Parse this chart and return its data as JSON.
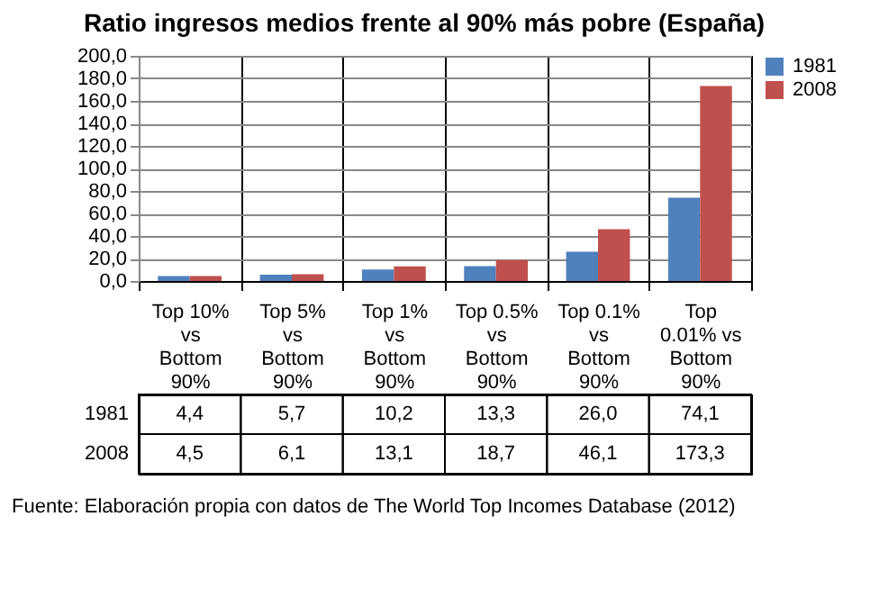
{
  "chart_data": {
    "type": "bar",
    "title": "Ratio ingresos medios frente al 90% más pobre (España)",
    "categories": [
      "Top 10% vs Bottom 90%",
      "Top 5% vs Bottom 90%",
      "Top 1% vs Bottom 90%",
      "Top 0.5% vs Bottom 90%",
      "Top 0.1% vs Bottom 90%",
      "Top 0.01% vs Bottom 90%"
    ],
    "series": [
      {
        "name": "1981",
        "color": "#4f81bd",
        "values": [
          4.4,
          5.7,
          10.2,
          13.3,
          26.0,
          74.1
        ],
        "value_labels": [
          "4,4",
          "5,7",
          "10,2",
          "13,3",
          "26,0",
          "74,1"
        ]
      },
      {
        "name": "2008",
        "color": "#c0504d",
        "values": [
          4.5,
          6.1,
          13.1,
          18.7,
          46.1,
          173.3
        ],
        "value_labels": [
          "4,5",
          "6,1",
          "13,1",
          "18,7",
          "46,1",
          "173,3"
        ]
      }
    ],
    "ylim": [
      0,
      200
    ],
    "yticks": [
      {
        "value": 0,
        "label": "0,0"
      },
      {
        "value": 20,
        "label": "20,0"
      },
      {
        "value": 40,
        "label": "40,0"
      },
      {
        "value": 60,
        "label": "60,0"
      },
      {
        "value": 80,
        "label": "80,0"
      },
      {
        "value": 100,
        "label": "100,0"
      },
      {
        "value": 120,
        "label": "120,0"
      },
      {
        "value": 140,
        "label": "140,0"
      },
      {
        "value": 160,
        "label": "160,0"
      },
      {
        "value": 180,
        "label": "180,0"
      },
      {
        "value": 200,
        "label": "200,0"
      }
    ],
    "grid": "y",
    "legend": "right",
    "annotations": [
      "Fuente: Elaboración propia con datos de The World Top Incomes Database (2012)"
    ]
  }
}
